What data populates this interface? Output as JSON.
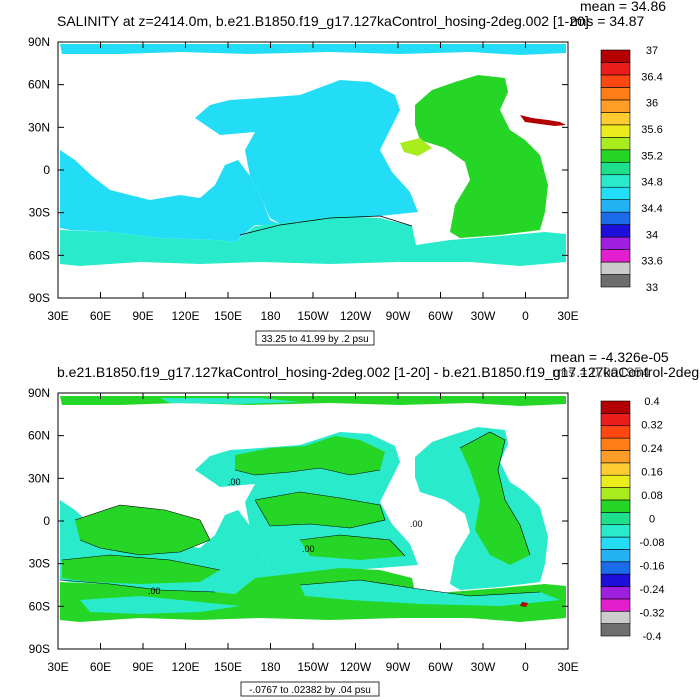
{
  "chart_data": [
    {
      "type": "heatmap",
      "title": "SALINITY at z=2414.0m, b.e21.B1850.f19_g17.127kaControl_hosing-2deg.002 [1-20]",
      "stats": [
        "mean = 34.86",
        "rms = 34.87"
      ],
      "xticks": [
        "30E",
        "60E",
        "90E",
        "120E",
        "150E",
        "180",
        "150W",
        "120W",
        "90W",
        "60W",
        "30W",
        "0",
        "30E"
      ],
      "yticks": [
        "90N",
        "60N",
        "30N",
        "0",
        "30S",
        "60S",
        "90S"
      ],
      "range_label": "33.25 to 41.99 by .2 psu",
      "colorbar": {
        "colors": [
          "#6e6e6e",
          "#cccccc",
          "#e21ecf",
          "#9f1fe0",
          "#1c0fd9",
          "#1c6bea",
          "#22b2f3",
          "#22ddf5",
          "#29ebcc",
          "#1ee08c",
          "#26d626",
          "#a8ec1e",
          "#ecec1c",
          "#fecb31",
          "#fe9e26",
          "#ff7d16",
          "#ff4712",
          "#ec1c1c",
          "#b30000"
        ],
        "labels": [
          "33",
          "33.6",
          "34",
          "34.4",
          "34.8",
          "35.2",
          "35.6",
          "36",
          "36.4",
          "37"
        ]
      }
    },
    {
      "type": "heatmap",
      "title": "b.e21.B1850.f19_g17.127kaControl_hosing-2deg.002 [1-20] - b.e21.B1850.f19_g17.127kaControl-2deg.",
      "stats": [
        "mean = -4.326e-05",
        "rms = 0.001954"
      ],
      "xticks": [
        "30E",
        "60E",
        "90E",
        "120E",
        "150E",
        "180",
        "150W",
        "120W",
        "90W",
        "60W",
        "30W",
        "0",
        "30E"
      ],
      "yticks": [
        "90N",
        "60N",
        "30N",
        "0",
        "30S",
        "60S",
        "90S"
      ],
      "range_label": "-.0767 to .02382 by .04 psu",
      "contour_label": ".00",
      "colorbar": {
        "colors": [
          "#6e6e6e",
          "#cccccc",
          "#e21ecf",
          "#9f1fe0",
          "#1c0fd9",
          "#1c6bea",
          "#22b2f3",
          "#22ddf5",
          "#29ebcc",
          "#1ee08c",
          "#26d626",
          "#a8ec1e",
          "#ecec1c",
          "#fecb31",
          "#fe9e26",
          "#ff7d16",
          "#ff4712",
          "#ec1c1c",
          "#b30000"
        ],
        "labels": [
          "-0.4",
          "-0.32",
          "-0.24",
          "-0.16",
          "-0.08",
          "0",
          "0.08",
          "0.16",
          "0.24",
          "0.32",
          "0.4"
        ]
      }
    }
  ]
}
